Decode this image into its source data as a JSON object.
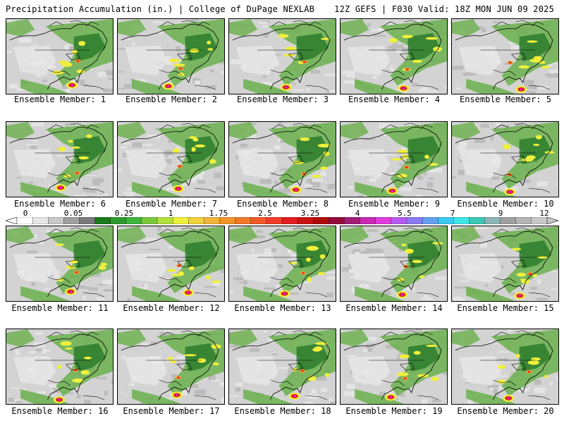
{
  "header": {
    "title": "Precipitation Accumulation (in.) | College of DuPage NEXLAB",
    "run_info": "12Z GEFS | F030 Valid: 18Z MON JUN 09 2025"
  },
  "panels": [
    {
      "label": "Ensemble Member: 1"
    },
    {
      "label": "Ensemble Member: 2"
    },
    {
      "label": "Ensemble Member: 3"
    },
    {
      "label": "Ensemble Member: 4"
    },
    {
      "label": "Ensemble Member: 5"
    },
    {
      "label": "Ensemble Member: 6"
    },
    {
      "label": "Ensemble Member: 7"
    },
    {
      "label": "Ensemble Member: 8"
    },
    {
      "label": "Ensemble Member: 9"
    },
    {
      "label": "Ensemble Member: 10"
    },
    {
      "label": "Ensemble Member: 11"
    },
    {
      "label": "Ensemble Member: 12"
    },
    {
      "label": "Ensemble Member: 13"
    },
    {
      "label": "Ensemble Member: 14"
    },
    {
      "label": "Ensemble Member: 15"
    },
    {
      "label": "Ensemble Member: 16"
    },
    {
      "label": "Ensemble Member: 17"
    },
    {
      "label": "Ensemble Member: 18"
    },
    {
      "label": "Ensemble Member: 19"
    },
    {
      "label": "Ensemble Member: 20"
    }
  ],
  "colorbar": {
    "tick_labels": [
      "0",
      "0.05",
      "0.25",
      "1",
      "1.75",
      "2.5",
      "3.25",
      "4",
      "5.5",
      "7",
      "9",
      "12"
    ],
    "colors": [
      "#ffffff",
      "#e6e6e6",
      "#c8c8c8",
      "#a0a0a0",
      "#7a7a7a",
      "#1a7a1a",
      "#2e9a2e",
      "#3cb43c",
      "#7ac83c",
      "#b4e03c",
      "#f0f03c",
      "#f0d03c",
      "#f0b43c",
      "#f09628",
      "#f07828",
      "#f05a28",
      "#f03c28",
      "#e01e1e",
      "#c81414",
      "#b00a0a",
      "#960a3c",
      "#a01e78",
      "#c828b4",
      "#e03cdc",
      "#b45af0",
      "#8c78f0",
      "#64a0f0",
      "#3cc8f0",
      "#3ce6e6",
      "#3cc8b4",
      "#8cb4b4",
      "#a0a0a0",
      "#b4b4b4",
      "#c8c8c8"
    ]
  },
  "map_colors": {
    "ocean_gray": "#d3d3d3",
    "land_light": "#e8e8e8",
    "green_light": "#6ab04c",
    "green_dark": "#2d7d2d",
    "yellow": "#f0f03c",
    "orange": "#f0a030",
    "red": "#e01e1e",
    "magenta": "#d02cd0"
  }
}
